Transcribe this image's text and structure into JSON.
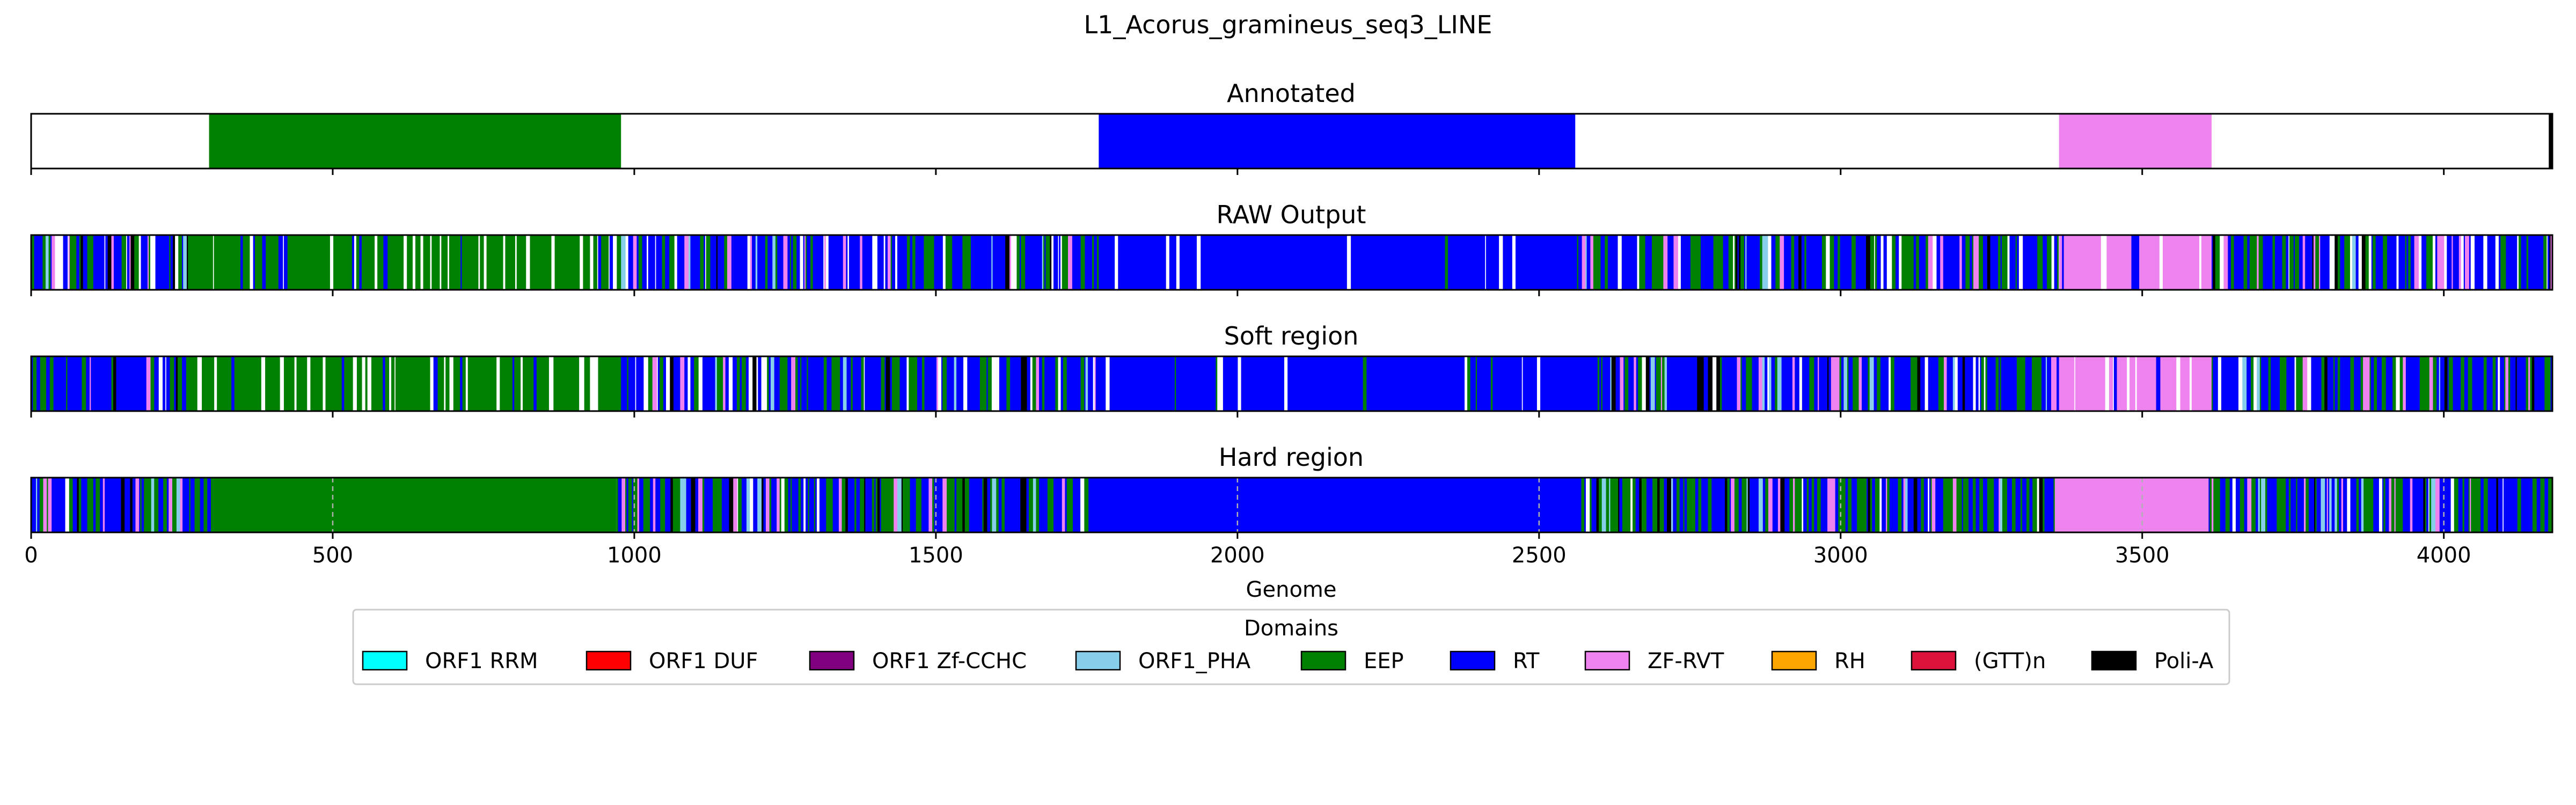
{
  "chart_data": {
    "type": "genome-track",
    "title": "L1_Acorus_gramineus_seq3_LINE",
    "xlabel": "Genome",
    "xlim": [
      0,
      4180
    ],
    "xticks": [
      0,
      500,
      1000,
      1500,
      2000,
      2500,
      3000,
      3500,
      4000
    ],
    "grid": "dashed vertical lines on Hard region track",
    "legend_title": "Domains",
    "legend_position": "bottom-center",
    "legend": [
      {
        "name": "ORF1 RRM",
        "color": "#00ffff"
      },
      {
        "name": "ORF1 DUF",
        "color": "#ff0000"
      },
      {
        "name": "ORF1 Zf-CCHC",
        "color": "#800080"
      },
      {
        "name": "ORF1_PHA",
        "color": "#87ceeb"
      },
      {
        "name": "EEP",
        "color": "#008000"
      },
      {
        "name": "RT",
        "color": "#0000ff"
      },
      {
        "name": "ZF-RVT",
        "color": "#ee82ee"
      },
      {
        "name": "RH",
        "color": "#ffa500"
      },
      {
        "name": "(GTT)n",
        "color": "#dc143c"
      },
      {
        "name": "Poli-A",
        "color": "#000000"
      }
    ],
    "tracks": [
      {
        "title": "Annotated",
        "style": "annotated",
        "segments": [
          {
            "domain": "EEP",
            "start": 295,
            "end": 978
          },
          {
            "domain": "RT",
            "start": 1770,
            "end": 2560
          },
          {
            "domain": "ZF-RVT",
            "start": 3362,
            "end": 3615
          },
          {
            "domain": "Poli-A",
            "start": 4174,
            "end": 4180
          }
        ]
      },
      {
        "title": "RAW Output",
        "style": "noisy",
        "regions": [
          {
            "start": 0,
            "end": 260,
            "base": "RT",
            "mix": "mixed"
          },
          {
            "start": 260,
            "end": 978,
            "base": "EEP",
            "mix": "sparse"
          },
          {
            "start": 978,
            "end": 1770,
            "base": "RT",
            "mix": "mixed"
          },
          {
            "start": 1770,
            "end": 2560,
            "base": "RT",
            "mix": "solid"
          },
          {
            "start": 2560,
            "end": 3362,
            "base": "RT",
            "mix": "mixed"
          },
          {
            "start": 3362,
            "end": 3615,
            "base": "ZF-RVT",
            "mix": "sparse"
          },
          {
            "start": 3615,
            "end": 4180,
            "base": "RT",
            "mix": "mixed"
          }
        ]
      },
      {
        "title": "Soft region",
        "style": "noisy",
        "regions": [
          {
            "start": 0,
            "end": 260,
            "base": "RT",
            "mix": "mixed"
          },
          {
            "start": 260,
            "end": 978,
            "base": "EEP",
            "mix": "sparse"
          },
          {
            "start": 978,
            "end": 1770,
            "base": "RT",
            "mix": "mixed"
          },
          {
            "start": 1770,
            "end": 2560,
            "base": "RT",
            "mix": "solid"
          },
          {
            "start": 2560,
            "end": 3362,
            "base": "RT",
            "mix": "mixed"
          },
          {
            "start": 3362,
            "end": 3615,
            "base": "ZF-RVT",
            "mix": "sparse"
          },
          {
            "start": 3615,
            "end": 4180,
            "base": "RT",
            "mix": "mixed"
          }
        ]
      },
      {
        "title": "Hard region",
        "style": "hard",
        "regions": [
          {
            "start": 0,
            "end": 298,
            "base": "RT",
            "mix": "mixed"
          },
          {
            "start": 298,
            "end": 970,
            "base": "EEP",
            "mix": "solid"
          },
          {
            "start": 970,
            "end": 1756,
            "base": "RT",
            "mix": "mixed"
          },
          {
            "start": 1756,
            "end": 2570,
            "base": "RT",
            "mix": "solid"
          },
          {
            "start": 2570,
            "end": 3355,
            "base": "RT",
            "mix": "mixed"
          },
          {
            "start": 3355,
            "end": 3610,
            "base": "ZF-RVT",
            "mix": "solid"
          },
          {
            "start": 3610,
            "end": 4180,
            "base": "RT",
            "mix": "mixed"
          }
        ]
      }
    ]
  }
}
